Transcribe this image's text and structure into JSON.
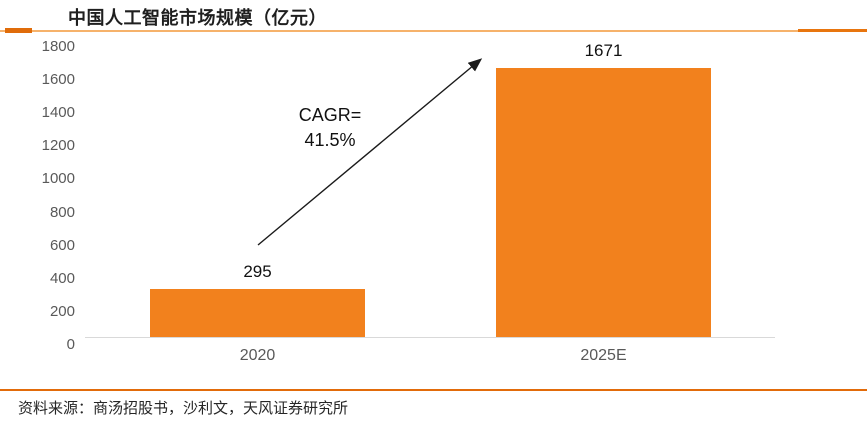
{
  "header": {
    "title": "中国人工智能市场规模（亿元）"
  },
  "footer": {
    "source": "资料来源：商汤招股书，沙利文，天风证券研究所"
  },
  "annotation": {
    "line1": "CAGR=",
    "line2": "41.5%"
  },
  "colors": {
    "bar": "#F2811D",
    "accent_dark": "#E26B0A",
    "accent_light": "#F6B26B",
    "axis_text": "#595959",
    "baseline": "#D9D9D9",
    "value_text": "#111111"
  },
  "chart_data": {
    "type": "bar",
    "title": "中国人工智能市场规模（亿元）",
    "categories": [
      "2020",
      "2025E"
    ],
    "values": [
      295,
      1671
    ],
    "series": [
      {
        "name": "中国人工智能市场规模",
        "values": [
          295,
          1671
        ]
      }
    ],
    "xlabel": "",
    "ylabel": "",
    "ylim": [
      0,
      1800
    ],
    "ytick_step": 200,
    "yticks": [
      "1800",
      "1600",
      "1400",
      "1200",
      "1000",
      "800",
      "600",
      "400",
      "200",
      "0"
    ],
    "grid": false,
    "legend": false,
    "bar_color": "#F2811D",
    "annotation": "CAGR=41.5%"
  }
}
